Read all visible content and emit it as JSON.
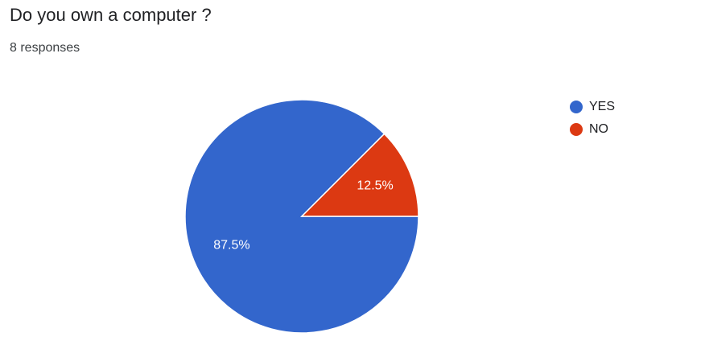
{
  "question": {
    "title": "Do you own a computer ?",
    "responses": "8 responses"
  },
  "colors": {
    "yes": "#3366cc",
    "no": "#dc3912",
    "text": "#202124",
    "slice_text": "#ffffff"
  },
  "chart_data": {
    "type": "pie",
    "title": "Do you own a computer ?",
    "subtitle": "8 responses",
    "legend_position": "right",
    "slices": [
      {
        "name": "YES",
        "value": 87.5,
        "label": "87.5%",
        "color": "#3366cc"
      },
      {
        "name": "NO",
        "value": 12.5,
        "label": "12.5%",
        "color": "#dc3912"
      }
    ]
  }
}
